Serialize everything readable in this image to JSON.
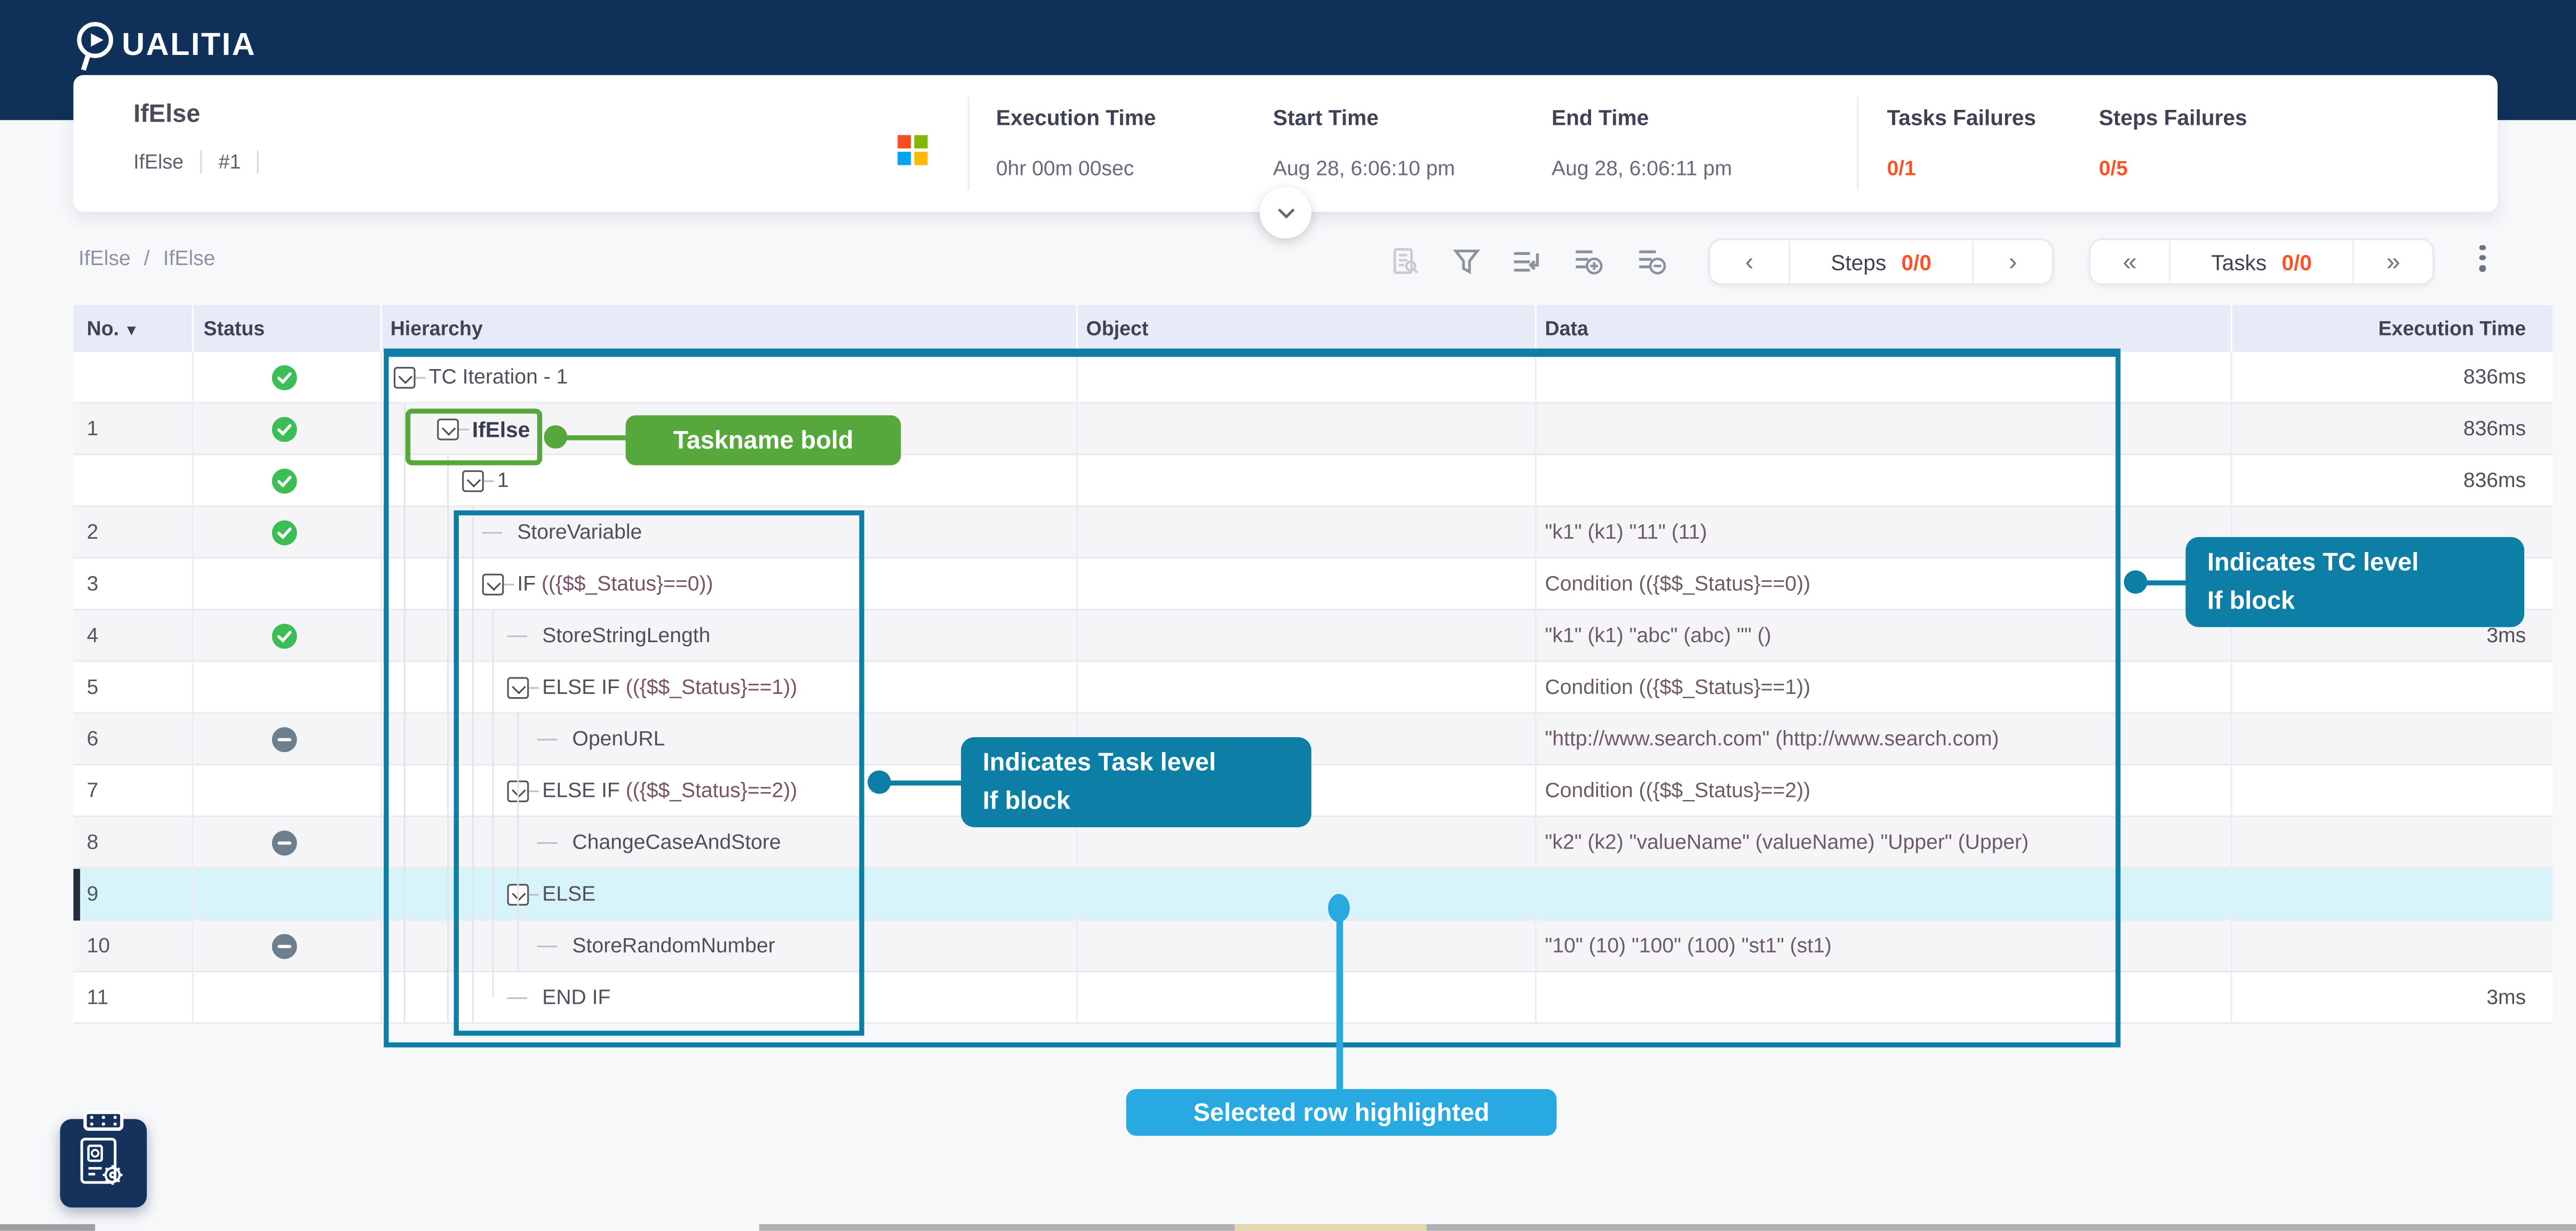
{
  "brand": {
    "logo_text": "UALITIA",
    "logo_name": "Qualitia"
  },
  "summary": {
    "title": "IfElse",
    "subtitle_name": "IfElse",
    "subtitle_run": "#1",
    "stats": [
      {
        "label": "Execution Time",
        "value": "0hr 00m 00sec"
      },
      {
        "label": "Start Time",
        "value": "Aug 28, 6:06:10 pm"
      },
      {
        "label": "End Time",
        "value": "Aug 28, 6:06:11 pm"
      }
    ],
    "failures": [
      {
        "label": "Tasks Failures",
        "value": "0/1"
      },
      {
        "label": "Steps Failures",
        "value": "0/5"
      }
    ]
  },
  "breadcrumb": {
    "items": [
      "IfElse",
      "IfElse"
    ],
    "separator": "/"
  },
  "toolbar": {
    "steps_pager": {
      "label": "Steps",
      "count": "0/0",
      "prev": "‹",
      "next": "›"
    },
    "tasks_pager": {
      "label": "Tasks",
      "count": "0/0",
      "first": "«",
      "last": "»"
    }
  },
  "table": {
    "columns": [
      "No.",
      "Status",
      "Hierarchy",
      "Object",
      "Data",
      "Execution Time"
    ],
    "rows": [
      {
        "no": "",
        "status": "pass",
        "level": 0,
        "kind": "expander",
        "name": "TC Iteration - 1",
        "cond": "",
        "bold": false,
        "selected": false,
        "data": "",
        "time": "836ms"
      },
      {
        "no": "1",
        "status": "pass",
        "level": 1,
        "kind": "expander",
        "name": "IfElse",
        "cond": "",
        "bold": true,
        "selected": false,
        "data": "",
        "time": "836ms"
      },
      {
        "no": "",
        "status": "pass",
        "level": 2,
        "kind": "expander",
        "name": "1",
        "cond": "",
        "bold": false,
        "selected": false,
        "data": "",
        "time": "836ms"
      },
      {
        "no": "2",
        "status": "pass",
        "level": 3,
        "kind": "dash",
        "name": "StoreVariable",
        "cond": "",
        "bold": false,
        "selected": false,
        "data": "\"k1\" (k1) \"11\" (11)",
        "time": ""
      },
      {
        "no": "3",
        "status": "none",
        "level": 3,
        "kind": "expander",
        "name": "IF ",
        "cond": "(({$$_Status}==0))",
        "bold": false,
        "selected": false,
        "data": "Condition (({$$_Status}==0))",
        "time": ""
      },
      {
        "no": "4",
        "status": "pass",
        "level": 4,
        "kind": "dash",
        "name": "StoreStringLength",
        "cond": "",
        "bold": false,
        "selected": false,
        "data": "\"k1\" (k1) \"abc\" (abc) \"\" ()",
        "time": "3ms"
      },
      {
        "no": "5",
        "status": "none",
        "level": 4,
        "kind": "expander",
        "name": "ELSE IF ",
        "cond": "(({$$_Status}==1))",
        "bold": false,
        "selected": false,
        "data": "Condition (({$$_Status}==1))",
        "time": ""
      },
      {
        "no": "6",
        "status": "skip",
        "level": 5,
        "kind": "dash",
        "name": "OpenURL",
        "cond": "",
        "bold": false,
        "selected": false,
        "data": "\"http://www.search.com\" (http://www.search.com)",
        "time": ""
      },
      {
        "no": "7",
        "status": "none",
        "level": 4,
        "kind": "expander",
        "name": "ELSE IF ",
        "cond": "(({$$_Status}==2))",
        "bold": false,
        "selected": false,
        "data": "Condition (({$$_Status}==2))",
        "time": ""
      },
      {
        "no": "8",
        "status": "skip",
        "level": 5,
        "kind": "dash",
        "name": "ChangeCaseAndStore",
        "cond": "",
        "bold": false,
        "selected": false,
        "data": "\"k2\" (k2) \"valueName\" (valueName) \"Upper\" (Upper)",
        "time": ""
      },
      {
        "no": "9",
        "status": "none",
        "level": 4,
        "kind": "expander",
        "name": "ELSE",
        "cond": "",
        "bold": false,
        "selected": true,
        "data": "",
        "time": ""
      },
      {
        "no": "10",
        "status": "skip",
        "level": 5,
        "kind": "dash",
        "name": "StoreRandomNumber",
        "cond": "",
        "bold": false,
        "selected": false,
        "data": "\"10\" (10) \"100\" (100) \"st1\" (st1)",
        "time": ""
      },
      {
        "no": "11",
        "status": "none",
        "level": 4,
        "kind": "dash",
        "name": "END IF",
        "cond": "",
        "bold": false,
        "selected": false,
        "data": "",
        "time": "3ms"
      }
    ]
  },
  "annotations": {
    "taskname_label": "Taskname bold",
    "tc_if_line1": "Indicates TC level",
    "tc_if_line2": "If block",
    "task_if_line1": "Indicates Task level",
    "task_if_line2": "If block",
    "selected_label": "Selected row highlighted"
  },
  "colors": {
    "navy": "#0f3059",
    "accent_teal": "#0d7ea6",
    "accent_blue": "#29a9e2",
    "accent_green": "#56a73c",
    "status_pass": "#3cbd55",
    "status_skip": "#6d7f8e",
    "failure_orange": "#f95427",
    "selected_row": "#d7f4fb"
  }
}
